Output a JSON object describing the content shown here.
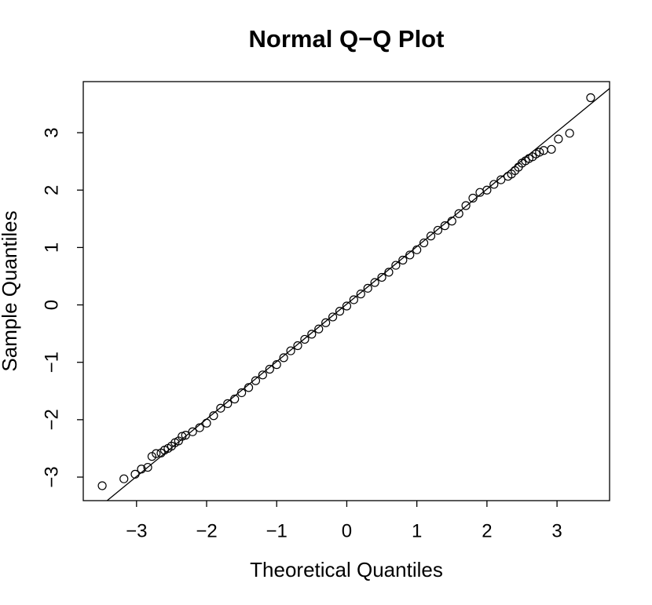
{
  "chart_data": {
    "type": "scatter",
    "title": "Normal Q−Q Plot",
    "x_label": "Theoretical Quantiles",
    "y_label": "Sample Quantiles",
    "xlim": [
      -3.76,
      3.75
    ],
    "ylim": [
      -3.41,
      3.89
    ],
    "xticks": [
      {
        "value": -3,
        "label": "−3"
      },
      {
        "value": -2,
        "label": "−2"
      },
      {
        "value": -1,
        "label": "−1"
      },
      0,
      1,
      2,
      3
    ],
    "yticks": [
      {
        "value": -3,
        "label": "−3"
      },
      {
        "value": -2,
        "label": "−2"
      },
      {
        "value": -1,
        "label": "−1"
      },
      0,
      1,
      2,
      3
    ],
    "color": "#000000",
    "x": [
      -3.49,
      -3.18,
      -3.02,
      -2.93,
      -2.84,
      -2.78,
      -2.72,
      -2.65,
      -2.6,
      -2.55,
      -2.5,
      -2.45,
      -2.4,
      -2.35,
      -2.3,
      -2.2,
      -2.1,
      -2.0,
      -1.9,
      -1.8,
      -1.7,
      -1.6,
      -1.5,
      -1.4,
      -1.3,
      -1.2,
      -1.1,
      -1.0,
      -0.9,
      -0.8,
      -0.7,
      -0.6,
      -0.5,
      -0.4,
      -0.3,
      -0.2,
      -0.1,
      0,
      0.1,
      0.2,
      0.3,
      0.4,
      0.5,
      0.6,
      0.7,
      0.8,
      0.9,
      1.0,
      1.1,
      1.2,
      1.3,
      1.4,
      1.5,
      1.6,
      1.7,
      1.8,
      1.9,
      2.0,
      2.1,
      2.2,
      2.3,
      2.35,
      2.4,
      2.45,
      2.5,
      2.55,
      2.6,
      2.65,
      2.7,
      2.75,
      2.81,
      2.92,
      3.02,
      3.18,
      3.48
    ],
    "values": [
      -3.15,
      -3.03,
      -2.95,
      -2.86,
      -2.83,
      -2.64,
      -2.59,
      -2.58,
      -2.53,
      -2.5,
      -2.46,
      -2.4,
      -2.37,
      -2.29,
      -2.27,
      -2.21,
      -2.14,
      -2.06,
      -1.93,
      -1.8,
      -1.72,
      -1.64,
      -1.53,
      -1.44,
      -1.32,
      -1.22,
      -1.12,
      -1.04,
      -0.92,
      -0.8,
      -0.71,
      -0.6,
      -0.51,
      -0.42,
      -0.31,
      -0.21,
      -0.11,
      -0.02,
      0.09,
      0.19,
      0.29,
      0.39,
      0.48,
      0.57,
      0.69,
      0.78,
      0.87,
      0.96,
      1.08,
      1.2,
      1.3,
      1.38,
      1.46,
      1.59,
      1.73,
      1.86,
      1.96,
      2.0,
      2.1,
      2.18,
      2.24,
      2.28,
      2.34,
      2.4,
      2.47,
      2.51,
      2.55,
      2.58,
      2.63,
      2.66,
      2.69,
      2.71,
      2.89,
      2.99,
      3.61
    ],
    "reference_line": {
      "x": [
        -3.42,
        3.75
      ],
      "y": [
        -3.41,
        3.77
      ]
    }
  }
}
